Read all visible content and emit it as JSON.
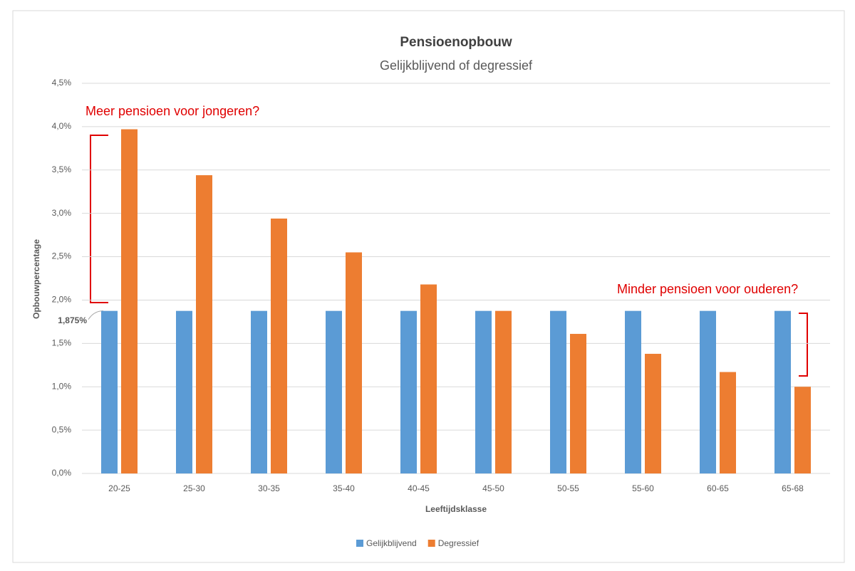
{
  "chart_data": {
    "type": "bar",
    "title": "Pensioenopbouw",
    "subtitle": "Gelijkblijvend of degressief",
    "x_label": "Leeftijdsklasse",
    "y_label": "Opbouwpercentage",
    "categories": [
      "20-25",
      "25-30",
      "30-35",
      "35-40",
      "40-45",
      "45-50",
      "50-55",
      "55-60",
      "60-65",
      "65-68"
    ],
    "series": [
      {
        "name": "Gelijkblijvend",
        "color": "#5b9bd5",
        "values": [
          1.875,
          1.875,
          1.875,
          1.875,
          1.875,
          1.875,
          1.875,
          1.875,
          1.875,
          1.875
        ]
      },
      {
        "name": "Degressief",
        "color": "#ed7d31",
        "values": [
          3.97,
          3.44,
          2.94,
          2.55,
          2.18,
          1.875,
          1.61,
          1.38,
          1.17,
          1.0
        ]
      }
    ],
    "ylim": [
      0,
      4.5
    ],
    "yticks": [
      {
        "value": 0,
        "label": "0,0%"
      },
      {
        "value": 0.5,
        "label": "0,5%"
      },
      {
        "value": 1,
        "label": "1,0%"
      },
      {
        "value": 1.5,
        "label": "1,5%"
      },
      {
        "value": 2,
        "label": "2,0%"
      },
      {
        "value": 2.5,
        "label": "2,5%"
      },
      {
        "value": 3,
        "label": "3,0%"
      },
      {
        "value": 3.5,
        "label": "3,5%"
      },
      {
        "value": 4,
        "label": "4,0%"
      },
      {
        "value": 4.5,
        "label": "4,5%"
      }
    ],
    "extra_yticks": [
      {
        "value": 1.875,
        "label": "1,875%"
      }
    ],
    "annotations": [
      "Meer pensioen voor jongeren?",
      "Minder pensioen voor ouderen?"
    ],
    "grid": true,
    "legend": "bottom"
  }
}
